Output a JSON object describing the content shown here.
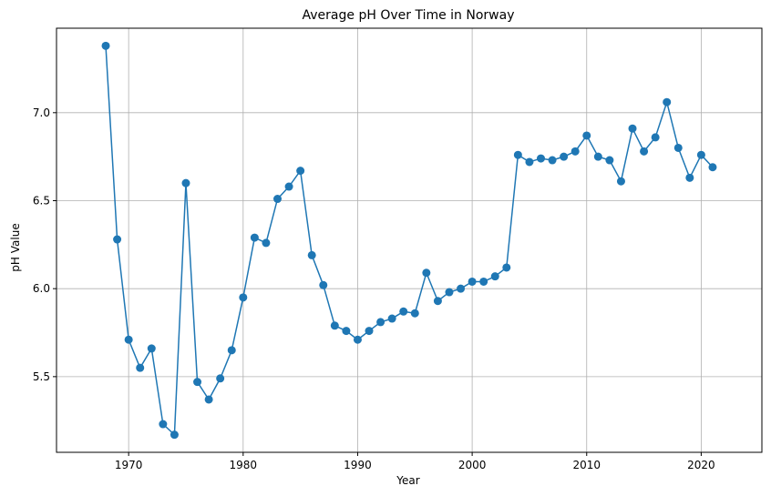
{
  "chart_data": {
    "type": "line",
    "title": "Average pH Over Time in Norway",
    "xlabel": "Year",
    "ylabel": "pH Value",
    "xlim": [
      1963.7,
      2025.3
    ],
    "ylim": [
      5.07,
      7.48
    ],
    "xticks": [
      1970,
      1980,
      1990,
      2000,
      2010,
      2020
    ],
    "yticks": [
      5.5,
      6.0,
      6.5,
      7.0
    ],
    "xtick_labels": [
      "1970",
      "1980",
      "1990",
      "2000",
      "2010",
      "2020"
    ],
    "ytick_labels": [
      "5.5",
      "6.0",
      "6.5",
      "7.0"
    ],
    "grid": true,
    "marker": "circle",
    "line_color": "#1f77b4",
    "series": [
      {
        "x": [
          1968,
          1969,
          1970,
          1971,
          1972,
          1973,
          1974,
          1975,
          1976,
          1977,
          1978,
          1979,
          1980,
          1981,
          1982,
          1983,
          1984,
          1985,
          1986,
          1987,
          1988,
          1989,
          1990,
          1991,
          1992,
          1993,
          1994,
          1995,
          1996,
          1997,
          1998,
          1999,
          2000,
          2001,
          2002,
          2003,
          2004,
          2005,
          2006,
          2007,
          2008,
          2009,
          2010,
          2011,
          2012,
          2013,
          2014,
          2015,
          2016,
          2017,
          2018,
          2019,
          2020,
          2021
        ],
        "y": [
          7.38,
          6.28,
          5.71,
          5.55,
          5.66,
          5.23,
          5.17,
          6.6,
          5.47,
          5.37,
          5.49,
          5.65,
          5.95,
          6.29,
          6.26,
          6.51,
          6.58,
          6.67,
          6.19,
          6.02,
          5.79,
          5.76,
          5.71,
          5.76,
          5.81,
          5.83,
          5.87,
          5.86,
          6.09,
          5.93,
          5.98,
          6.0,
          6.04,
          6.04,
          6.07,
          6.12,
          6.76,
          6.72,
          6.74,
          6.73,
          6.75,
          6.78,
          6.87,
          6.75,
          6.73,
          6.61,
          6.91,
          6.78,
          6.86,
          7.06,
          6.8,
          6.63,
          6.76,
          6.69
        ]
      }
    ]
  }
}
